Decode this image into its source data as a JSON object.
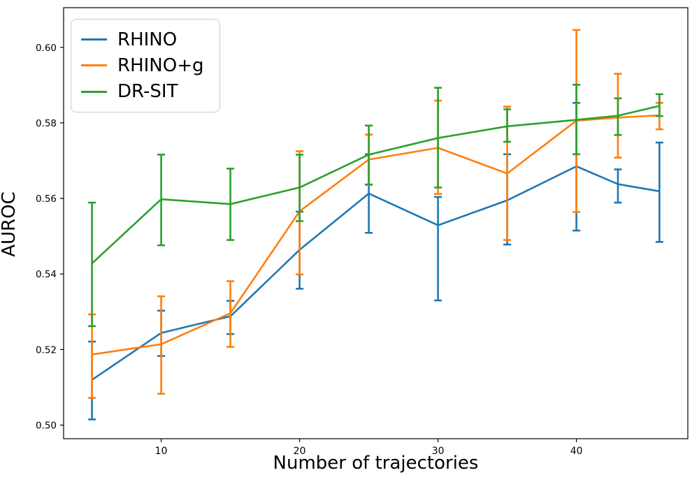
{
  "figure": {
    "background": "#ffffff",
    "frame_color": "#000000",
    "tick_color": "#000000",
    "tick_label_color": "#000000"
  },
  "chart_data": {
    "type": "line",
    "title": "",
    "xlabel": "Number of trajectories",
    "ylabel": "AUROC",
    "grid": false,
    "legend_position": "upper left",
    "error_bars": true,
    "x": [
      5,
      10,
      15,
      20,
      25,
      30,
      35,
      40,
      43,
      46
    ],
    "xlim": [
      2.95,
      48.05
    ],
    "ylim": [
      0.4964,
      0.6105
    ],
    "xticks": [
      10,
      20,
      30,
      40
    ],
    "xtick_labels": [
      "10",
      "20",
      "30",
      "40"
    ],
    "yticks": [
      0.5,
      0.52,
      0.54,
      0.56,
      0.58,
      0.6
    ],
    "ytick_labels": [
      "0.50",
      "0.52",
      "0.54",
      "0.56",
      "0.58",
      "0.60"
    ],
    "series": [
      {
        "name": "RHINO",
        "color": "#1f77b4",
        "values": [
          0.512,
          0.5244,
          0.5288,
          0.5464,
          0.5613,
          0.5529,
          0.5595,
          0.5685,
          0.5638,
          0.5619
        ],
        "err_low": [
          0.5015,
          0.5183,
          0.5241,
          0.5361,
          0.5509,
          0.533,
          0.5478,
          0.5515,
          0.5589,
          0.5485
        ],
        "err_high": [
          0.5221,
          0.5303,
          0.5329,
          0.5565,
          0.5717,
          0.5604,
          0.5717,
          0.5853,
          0.5677,
          0.5748
        ]
      },
      {
        "name": "RHINO+g",
        "color": "#ff7f0e",
        "values": [
          0.5187,
          0.5214,
          0.5296,
          0.5566,
          0.5703,
          0.5734,
          0.5666,
          0.5806,
          0.5814,
          0.582
        ],
        "err_low": [
          0.5072,
          0.5083,
          0.5207,
          0.5399,
          0.5636,
          0.5612,
          0.549,
          0.5564,
          0.5708,
          0.5783
        ],
        "err_high": [
          0.5293,
          0.5341,
          0.5381,
          0.5725,
          0.5769,
          0.5859,
          0.5843,
          0.6046,
          0.593,
          0.5853
        ]
      },
      {
        "name": "DR-SIT",
        "color": "#2ca02c",
        "values": [
          0.5428,
          0.5598,
          0.5585,
          0.5629,
          0.5716,
          0.576,
          0.5791,
          0.5808,
          0.5819,
          0.5845
        ],
        "err_low": [
          0.5262,
          0.5476,
          0.549,
          0.554,
          0.5637,
          0.5629,
          0.575,
          0.5717,
          0.5768,
          0.5818
        ],
        "err_high": [
          0.5589,
          0.5716,
          0.5679,
          0.5716,
          0.5793,
          0.5893,
          0.5836,
          0.5901,
          0.5865,
          0.5876
        ]
      }
    ]
  }
}
